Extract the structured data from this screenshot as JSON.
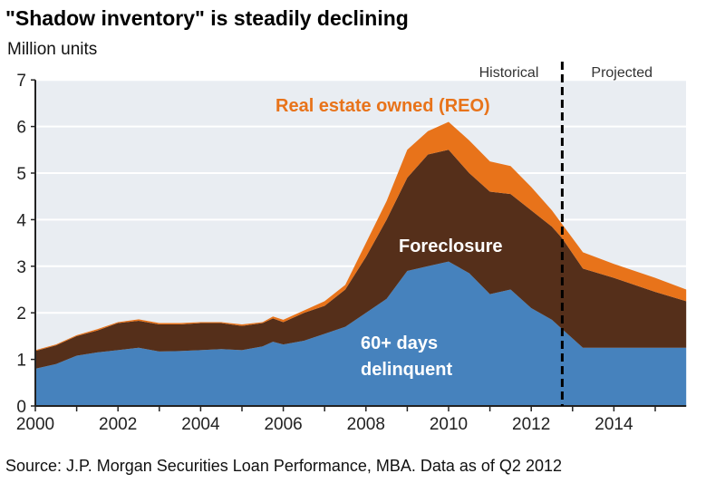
{
  "chart_data": {
    "type": "area",
    "stacked": true,
    "title": "\"Shadow inventory\" is steadily declining",
    "subtitle": "Million units",
    "ylabel": "Million units",
    "xlabel": "",
    "ylim": [
      0,
      7
    ],
    "xlim": [
      2000,
      2015.75
    ],
    "yticks": [
      "0",
      "1",
      "2",
      "3",
      "4",
      "5",
      "6",
      "7"
    ],
    "xticks": [
      "2000",
      "2002",
      "2004",
      "2006",
      "2008",
      "2010",
      "2012",
      "2014"
    ],
    "grid": true,
    "divider": {
      "x": 2012.75,
      "left_label": "Historical",
      "right_label": "Projected"
    },
    "x": [
      2000,
      2000.5,
      2001,
      2001.5,
      2002,
      2002.5,
      2003,
      2003.5,
      2004,
      2004.5,
      2005,
      2005.5,
      2005.75,
      2006,
      2006.5,
      2007,
      2007.5,
      2008,
      2008.5,
      2009,
      2009.5,
      2010,
      2010.5,
      2011,
      2011.5,
      2012,
      2012.5,
      2012.75,
      2013.25,
      2014,
      2015,
      2015.75
    ],
    "series": [
      {
        "name": "60+ days delinquent",
        "label": "60+ days",
        "label2": "delinquent",
        "color": "#4682bd",
        "values": [
          0.8,
          0.9,
          1.08,
          1.15,
          1.2,
          1.25,
          1.17,
          1.18,
          1.2,
          1.22,
          1.2,
          1.28,
          1.38,
          1.32,
          1.4,
          1.55,
          1.7,
          2.0,
          2.3,
          2.9,
          3.0,
          3.1,
          2.85,
          2.4,
          2.5,
          2.1,
          1.85,
          1.65,
          1.25,
          1.25,
          1.25,
          1.25
        ]
      },
      {
        "name": "Foreclosure",
        "label": "Foreclosure",
        "color": "#552f1a",
        "values": [
          0.38,
          0.4,
          0.42,
          0.47,
          0.58,
          0.58,
          0.58,
          0.57,
          0.58,
          0.56,
          0.52,
          0.5,
          0.5,
          0.48,
          0.6,
          0.6,
          0.8,
          1.2,
          1.7,
          2.0,
          2.4,
          2.4,
          2.15,
          2.2,
          2.05,
          2.1,
          2.0,
          1.95,
          1.7,
          1.5,
          1.2,
          1.0
        ]
      },
      {
        "name": "Real estate owned (REO)",
        "label": "Real estate owned (REO)",
        "color": "#e8731a",
        "values": [
          0.02,
          0.02,
          0.02,
          0.03,
          0.02,
          0.03,
          0.03,
          0.03,
          0.02,
          0.02,
          0.03,
          0.02,
          0.04,
          0.05,
          0.05,
          0.1,
          0.1,
          0.3,
          0.4,
          0.6,
          0.5,
          0.6,
          0.7,
          0.65,
          0.6,
          0.5,
          0.35,
          0.3,
          0.35,
          0.3,
          0.3,
          0.25
        ]
      }
    ],
    "source": "Source: J.P. Morgan Securities  Loan Performance, MBA. Data as of Q2 2012"
  }
}
